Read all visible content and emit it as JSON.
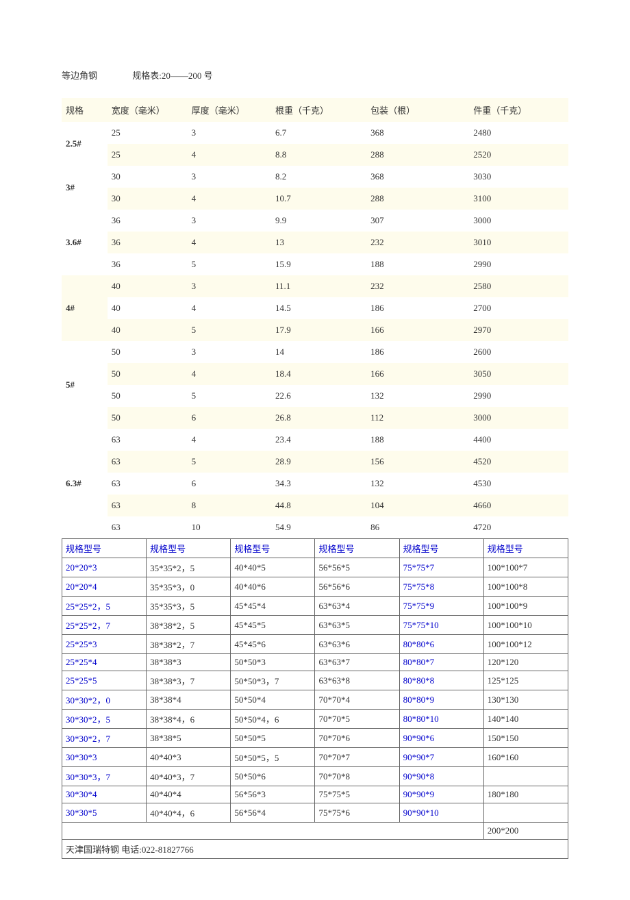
{
  "title": {
    "left": "等边角钢",
    "right": "规格表:20——200 号"
  },
  "mainTable": {
    "headers": [
      "规格",
      "宽度（毫米）",
      "厚度（毫米）",
      "根重（千克）",
      "包装（根）",
      "件重（千克）"
    ],
    "groups": [
      {
        "spec": "2.5#",
        "rows": [
          [
            "25",
            "3",
            "6.7",
            "368",
            "2480"
          ],
          [
            "25",
            "4",
            "8.8",
            "288",
            "2520"
          ]
        ]
      },
      {
        "spec": "3#",
        "rows": [
          [
            "30",
            "3",
            "8.2",
            "368",
            "3030"
          ],
          [
            "30",
            "4",
            "10.7",
            "288",
            "3100"
          ]
        ]
      },
      {
        "spec": "3.6#",
        "rows": [
          [
            "36",
            "3",
            "9.9",
            "307",
            "3000"
          ],
          [
            "36",
            "4",
            "13",
            "232",
            "3010"
          ],
          [
            "36",
            "5",
            "15.9",
            "188",
            "2990"
          ]
        ]
      },
      {
        "spec": "4#",
        "rows": [
          [
            "40",
            "3",
            "11.1",
            "232",
            "2580"
          ],
          [
            "40",
            "4",
            "14.5",
            "186",
            "2700"
          ],
          [
            "40",
            "5",
            "17.9",
            "166",
            "2970"
          ]
        ]
      },
      {
        "spec": "5#",
        "rows": [
          [
            "50",
            "3",
            "14",
            "186",
            "2600"
          ],
          [
            "50",
            "4",
            "18.4",
            "166",
            "3050"
          ],
          [
            "50",
            "5",
            "22.6",
            "132",
            "2990"
          ],
          [
            "50",
            "6",
            "26.8",
            "112",
            "3000"
          ]
        ]
      },
      {
        "spec": "6.3#",
        "rows": [
          [
            "63",
            "4",
            "23.4",
            "188",
            "4400"
          ],
          [
            "63",
            "5",
            "28.9",
            "156",
            "4520"
          ],
          [
            "63",
            "6",
            "34.3",
            "132",
            "4530"
          ],
          [
            "63",
            "8",
            "44.8",
            "104",
            "4660"
          ],
          [
            "63",
            "10",
            "54.9",
            "86",
            "4720"
          ]
        ]
      }
    ]
  },
  "modelTable": {
    "header": "规格型号",
    "rows": [
      [
        [
          "20*20*3",
          "link"
        ],
        [
          "35*35*2，5",
          "plain"
        ],
        [
          "40*40*5",
          "plain"
        ],
        [
          "56*56*5",
          "plain"
        ],
        [
          "75*75*7",
          "link"
        ],
        [
          "100*100*7",
          "plain"
        ]
      ],
      [
        [
          "20*20*4",
          "link"
        ],
        [
          "35*35*3，0",
          "plain"
        ],
        [
          "40*40*6",
          "plain"
        ],
        [
          "56*56*6",
          "plain"
        ],
        [
          "75*75*8",
          "link"
        ],
        [
          "100*100*8",
          "plain"
        ]
      ],
      [
        [
          "25*25*2，5",
          "link"
        ],
        [
          "35*35*3，5",
          "plain"
        ],
        [
          "45*45*4",
          "plain"
        ],
        [
          "63*63*4",
          "plain"
        ],
        [
          "75*75*9",
          "link"
        ],
        [
          "100*100*9",
          "plain"
        ]
      ],
      [
        [
          "25*25*2，7",
          "link"
        ],
        [
          "38*38*2，5",
          "plain"
        ],
        [
          "45*45*5",
          "plain"
        ],
        [
          "63*63*5",
          "plain"
        ],
        [
          "75*75*10",
          "link"
        ],
        [
          "100*100*10",
          "plain"
        ]
      ],
      [
        [
          "25*25*3",
          "link"
        ],
        [
          "38*38*2，7",
          "plain"
        ],
        [
          "45*45*6",
          "plain"
        ],
        [
          "63*63*6",
          "plain"
        ],
        [
          "80*80*6",
          "link"
        ],
        [
          "100*100*12",
          "plain"
        ]
      ],
      [
        [
          "25*25*4",
          "link"
        ],
        [
          "38*38*3",
          "plain"
        ],
        [
          "50*50*3",
          "plain"
        ],
        [
          "63*63*7",
          "plain"
        ],
        [
          "80*80*7",
          "link"
        ],
        [
          "120*120",
          "plain"
        ]
      ],
      [
        [
          "25*25*5",
          "link"
        ],
        [
          "38*38*3，7",
          "plain"
        ],
        [
          "50*50*3，7",
          "plain"
        ],
        [
          "63*63*8",
          "plain"
        ],
        [
          "80*80*8",
          "link"
        ],
        [
          "125*125",
          "plain"
        ]
      ],
      [
        [
          "30*30*2，0",
          "link"
        ],
        [
          "38*38*4",
          "plain"
        ],
        [
          "50*50*4",
          "plain"
        ],
        [
          "70*70*4",
          "plain"
        ],
        [
          "80*80*9",
          "link"
        ],
        [
          "130*130",
          "plain"
        ]
      ],
      [
        [
          "30*30*2，5",
          "link"
        ],
        [
          "38*38*4，6",
          "plain"
        ],
        [
          "50*50*4，6",
          "plain"
        ],
        [
          "70*70*5",
          "plain"
        ],
        [
          "80*80*10",
          "link"
        ],
        [
          "140*140",
          "plain"
        ]
      ],
      [
        [
          "30*30*2，7",
          "link"
        ],
        [
          "38*38*5",
          "plain"
        ],
        [
          "50*50*5",
          "plain"
        ],
        [
          "70*70*6",
          "plain"
        ],
        [
          "90*90*6",
          "link"
        ],
        [
          "150*150",
          "plain"
        ]
      ],
      [
        [
          "30*30*3",
          "link"
        ],
        [
          "40*40*3",
          "plain"
        ],
        [
          "50*50*5，5",
          "plain"
        ],
        [
          "70*70*7",
          "plain"
        ],
        [
          "90*90*7",
          "link"
        ],
        [
          "160*160",
          "plain"
        ]
      ],
      [
        [
          "30*30*3，7",
          "link"
        ],
        [
          "40*40*3，7",
          "plain"
        ],
        [
          "50*50*6",
          "plain"
        ],
        [
          "70*70*8",
          "plain"
        ],
        [
          "90*90*8",
          "link"
        ],
        [
          "",
          "plain"
        ]
      ],
      [
        [
          "30*30*4",
          "link"
        ],
        [
          "40*40*4",
          "plain"
        ],
        [
          "56*56*3",
          "plain"
        ],
        [
          "75*75*5",
          "plain"
        ],
        [
          "90*90*9",
          "link"
        ],
        [
          "180*180",
          "plain"
        ]
      ],
      [
        [
          "30*30*5",
          "link"
        ],
        [
          "40*40*4，6",
          "plain"
        ],
        [
          "56*56*4",
          "plain"
        ],
        [
          "75*75*6",
          "plain"
        ],
        [
          "90*90*10",
          "link"
        ],
        [
          "",
          "plain"
        ]
      ]
    ],
    "lastCellExtra": "200*200",
    "footer": "天津国瑞特钢 电话:022-81827766"
  }
}
